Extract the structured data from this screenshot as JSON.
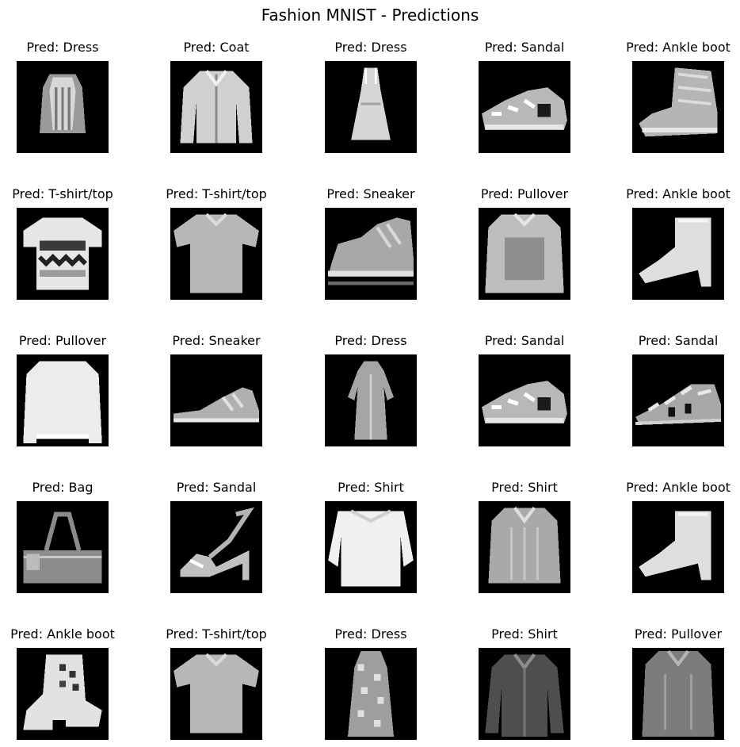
{
  "title": "Fashion MNIST - Predictions",
  "colors": {
    "background": "#ffffff",
    "image_background": "#000000",
    "text": "#000000"
  },
  "grid": {
    "rows": 5,
    "cols": 5
  },
  "items": [
    {
      "label": "Pred: Dress",
      "item": "dress"
    },
    {
      "label": "Pred: Coat",
      "item": "coat"
    },
    {
      "label": "Pred: Dress",
      "item": "dress-slim"
    },
    {
      "label": "Pred: Sandal",
      "item": "sandal"
    },
    {
      "label": "Pred: Ankle boot",
      "item": "ankle-boot"
    },
    {
      "label": "Pred: T-shirt/top",
      "item": "tshirt-printed"
    },
    {
      "label": "Pred: T-shirt/top",
      "item": "tshirt"
    },
    {
      "label": "Pred: Sneaker",
      "item": "sneaker"
    },
    {
      "label": "Pred: Pullover",
      "item": "pullover"
    },
    {
      "label": "Pred: Ankle boot",
      "item": "ankle-boot-heel"
    },
    {
      "label": "Pred: Pullover",
      "item": "pullover-light"
    },
    {
      "label": "Pred: Sneaker",
      "item": "sneaker-low"
    },
    {
      "label": "Pred: Dress",
      "item": "dress-long"
    },
    {
      "label": "Pred: Sandal",
      "item": "sandal"
    },
    {
      "label": "Pred: Sandal",
      "item": "sandal-strappy"
    },
    {
      "label": "Pred: Bag",
      "item": "bag"
    },
    {
      "label": "Pred: Sandal",
      "item": "heeled-sandal"
    },
    {
      "label": "Pred: Shirt",
      "item": "shirt-wide"
    },
    {
      "label": "Pred: Shirt",
      "item": "shirt"
    },
    {
      "label": "Pred: Ankle boot",
      "item": "ankle-boot-heel"
    },
    {
      "label": "Pred: Ankle boot",
      "item": "ankle-boot-pattern"
    },
    {
      "label": "Pred: T-shirt/top",
      "item": "tshirt"
    },
    {
      "label": "Pred: Dress",
      "item": "dress-pattern"
    },
    {
      "label": "Pred: Shirt",
      "item": "shirt-dark"
    },
    {
      "label": "Pred: Pullover",
      "item": "pullover-dark"
    }
  ]
}
